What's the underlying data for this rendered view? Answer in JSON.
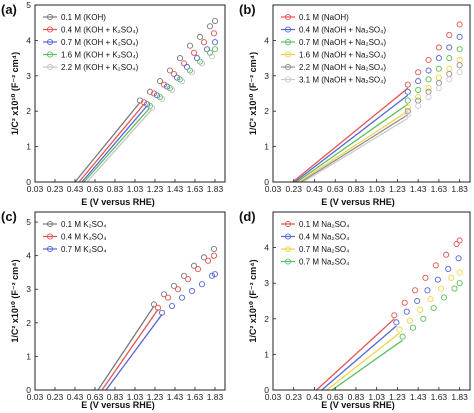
{
  "figure": {
    "x_axis_title": "E (V versus RHE)"
  },
  "chart_data": [
    {
      "panel": "(a)",
      "type": "scatter",
      "xlabel": "E (V versus RHE)",
      "ylabel": "1/C² x10¹⁰ (F⁻² cm⁴)",
      "xlim": [
        0.03,
        1.93
      ],
      "ylim": [
        0,
        5
      ],
      "xticks": [
        "0.03",
        "0.23",
        "0.43",
        "0.63",
        "0.83",
        "1.03",
        "1.23",
        "1.43",
        "1.63",
        "1.83"
      ],
      "yticks": [
        "0",
        "1",
        "2",
        "3",
        "4",
        "5"
      ],
      "legend_position": "top-left",
      "series": [
        {
          "name": "0.1 M (KOH)",
          "color": "#7a7a7a",
          "fit_x": [
            0.43,
            1.08
          ],
          "fit_y": [
            0,
            2.25
          ],
          "x": [
            1.08,
            1.18,
            1.28,
            1.38,
            1.48,
            1.58,
            1.68,
            1.78,
            1.83
          ],
          "y": [
            2.3,
            2.55,
            2.85,
            3.15,
            3.5,
            3.85,
            4.1,
            4.4,
            4.55
          ]
        },
        {
          "name": "0.4 M (KOH + K₂SO₄)",
          "color": "#e8534f",
          "fit_x": [
            0.47,
            1.12
          ],
          "fit_y": [
            0,
            2.2
          ],
          "x": [
            1.12,
            1.22,
            1.32,
            1.42,
            1.52,
            1.62,
            1.72,
            1.82
          ],
          "y": [
            2.25,
            2.5,
            2.75,
            3.05,
            3.35,
            3.65,
            3.95,
            4.2
          ]
        },
        {
          "name": "0.7 M (KOH + K₂SO₄)",
          "color": "#5567d8",
          "fit_x": [
            0.5,
            1.15
          ],
          "fit_y": [
            0,
            2.15
          ],
          "x": [
            1.15,
            1.25,
            1.35,
            1.45,
            1.55,
            1.65,
            1.75,
            1.83
          ],
          "y": [
            2.2,
            2.45,
            2.7,
            2.95,
            3.25,
            3.5,
            3.75,
            3.95
          ]
        },
        {
          "name": "1.6 M (KOH + K₂SO₄)",
          "color": "#5cbf5c",
          "fit_x": [
            0.52,
            1.18
          ],
          "fit_y": [
            0,
            2.1
          ],
          "x": [
            1.18,
            1.28,
            1.38,
            1.48,
            1.58,
            1.68,
            1.78,
            1.83
          ],
          "y": [
            2.15,
            2.4,
            2.65,
            2.9,
            3.15,
            3.4,
            3.65,
            3.75
          ]
        },
        {
          "name": "2.2 M (KOH + K₂SO₄)",
          "color": "#c4c4c4",
          "fit_x": [
            0.55,
            1.2
          ],
          "fit_y": [
            0,
            2.05
          ],
          "x": [
            1.2,
            1.3,
            1.4,
            1.5,
            1.6,
            1.7,
            1.8
          ],
          "y": [
            2.1,
            2.35,
            2.6,
            2.85,
            3.1,
            3.35,
            3.55
          ]
        }
      ]
    },
    {
      "panel": "(b)",
      "type": "scatter",
      "xlabel": "E (V versus RHE)",
      "ylabel": "1/C² x10¹⁰ (F⁻² cm⁴)",
      "xlim": [
        0.03,
        1.93
      ],
      "ylim": [
        0,
        5
      ],
      "xticks": [
        "0.03",
        "0.23",
        "0.43",
        "0.63",
        "0.83",
        "1.03",
        "1.23",
        "1.43",
        "1.63",
        "1.83"
      ],
      "yticks": [
        "0",
        "1",
        "2",
        "3",
        "4"
      ],
      "legend_position": "top-left",
      "series": [
        {
          "name": "0.1 M (NaOH)",
          "color": "#e8534f",
          "fit_x": [
            0.22,
            1.33
          ],
          "fit_y": [
            0,
            2.65
          ],
          "x": [
            1.33,
            1.43,
            1.53,
            1.63,
            1.73,
            1.83
          ],
          "y": [
            2.75,
            3.1,
            3.45,
            3.8,
            4.15,
            4.45
          ]
        },
        {
          "name": "0.4 M (NaOH + Na₂SO₄)",
          "color": "#5567d8",
          "fit_x": [
            0.24,
            1.33
          ],
          "fit_y": [
            0,
            2.45
          ],
          "x": [
            1.33,
            1.43,
            1.53,
            1.63,
            1.73,
            1.83
          ],
          "y": [
            2.55,
            2.85,
            3.15,
            3.5,
            3.8,
            4.1
          ]
        },
        {
          "name": "0.7 M (NaOH + Na₂SO₄)",
          "color": "#5cbf5c",
          "fit_x": [
            0.26,
            1.33
          ],
          "fit_y": [
            0,
            2.2
          ],
          "x": [
            1.33,
            1.43,
            1.53,
            1.63,
            1.73,
            1.83
          ],
          "y": [
            2.3,
            2.6,
            2.9,
            3.2,
            3.5,
            3.75
          ]
        },
        {
          "name": "1.6 M (NaOH + Na₂SO₄)",
          "color": "#f2d24a",
          "fit_x": [
            0.28,
            1.33
          ],
          "fit_y": [
            0,
            2.0
          ],
          "x": [
            1.33,
            1.43,
            1.53,
            1.63,
            1.73,
            1.83
          ],
          "y": [
            2.1,
            2.4,
            2.65,
            2.95,
            3.2,
            3.45
          ]
        },
        {
          "name": "2.2 M (NaOH + Na₂SO₄)",
          "color": "#8e8e8e",
          "fit_x": [
            0.3,
            1.33
          ],
          "fit_y": [
            0,
            1.9
          ],
          "x": [
            1.33,
            1.43,
            1.53,
            1.63,
            1.73,
            1.83
          ],
          "y": [
            2.0,
            2.3,
            2.55,
            2.8,
            3.05,
            3.3
          ]
        },
        {
          "name": "3.1 M (NaOH + Na₂SO₄)",
          "color": "#cccccc",
          "fit_x": [
            0.32,
            1.33
          ],
          "fit_y": [
            0,
            1.8
          ],
          "x": [
            1.33,
            1.43,
            1.53,
            1.63,
            1.73,
            1.83
          ],
          "y": [
            1.9,
            2.15,
            2.4,
            2.65,
            2.9,
            3.1
          ]
        }
      ]
    },
    {
      "panel": "(c)",
      "type": "scatter",
      "xlabel": "E (V versus RHE)",
      "ylabel": "1/C² x10¹⁰ (F⁻² cm⁴)",
      "xlim": [
        0.03,
        1.93
      ],
      "ylim": [
        0,
        5.3
      ],
      "xticks": [
        "0.03",
        "0.23",
        "0.43",
        "0.63",
        "0.83",
        "1.03",
        "1.23",
        "1.43",
        "1.63",
        "1.83"
      ],
      "yticks": [
        "0",
        "1",
        "2",
        "3",
        "4",
        "5"
      ],
      "legend_position": "top-left",
      "series": [
        {
          "name": "0.1 M K₂SO₄",
          "color": "#7a7a7a",
          "fit_x": [
            0.66,
            1.22
          ],
          "fit_y": [
            0,
            2.5
          ],
          "x": [
            1.22,
            1.32,
            1.42,
            1.52,
            1.62,
            1.72,
            1.82
          ],
          "y": [
            2.55,
            2.85,
            3.1,
            3.4,
            3.7,
            3.95,
            4.2
          ]
        },
        {
          "name": "0.4 M K₂SO₄",
          "color": "#e8534f",
          "fit_x": [
            0.7,
            1.26
          ],
          "fit_y": [
            0,
            2.4
          ],
          "x": [
            1.26,
            1.36,
            1.46,
            1.56,
            1.66,
            1.76,
            1.82
          ],
          "y": [
            2.45,
            2.75,
            3.0,
            3.3,
            3.6,
            3.85,
            4.0
          ]
        },
        {
          "name": "0.7 M K₂SO₄",
          "color": "#5567d8",
          "fit_x": [
            0.74,
            1.3
          ],
          "fit_y": [
            0,
            2.25
          ],
          "x": [
            1.3,
            1.4,
            1.5,
            1.6,
            1.7,
            1.8,
            1.83
          ],
          "y": [
            2.3,
            2.5,
            2.75,
            2.95,
            3.15,
            3.4,
            3.45
          ]
        }
      ]
    },
    {
      "panel": "(d)",
      "type": "scatter",
      "xlabel": "E (V versus RHE)",
      "ylabel": "1/C² x10¹⁰ (F⁻² cm⁴)",
      "xlim": [
        0.03,
        1.93
      ],
      "ylim": [
        0,
        5
      ],
      "xticks": [
        "0.03",
        "0.23",
        "0.43",
        "0.63",
        "0.83",
        "1.03",
        "1.23",
        "1.43",
        "1.63",
        "1.83"
      ],
      "yticks": [
        "0",
        "1",
        "2",
        "3",
        "4"
      ],
      "legend_position": "top-left",
      "series": [
        {
          "name": "0.1 M Na₂SO₄",
          "color": "#e8534f",
          "fit_x": [
            0.45,
            1.2
          ],
          "fit_y": [
            0,
            2.0
          ],
          "x": [
            1.2,
            1.3,
            1.4,
            1.5,
            1.6,
            1.7,
            1.8,
            1.83
          ],
          "y": [
            2.1,
            2.45,
            2.8,
            3.15,
            3.5,
            3.8,
            4.1,
            4.2
          ]
        },
        {
          "name": "0.4 M Na₂SO₄",
          "color": "#5567d8",
          "fit_x": [
            0.5,
            1.22
          ],
          "fit_y": [
            0,
            1.8
          ],
          "x": [
            1.22,
            1.32,
            1.42,
            1.52,
            1.62,
            1.72,
            1.82
          ],
          "y": [
            1.9,
            2.2,
            2.5,
            2.8,
            3.1,
            3.4,
            3.7
          ]
        },
        {
          "name": "0.7 M Na₂SO₄",
          "color": "#f2d24a",
          "fit_x": [
            0.55,
            1.25
          ],
          "fit_y": [
            0,
            1.6
          ],
          "x": [
            1.25,
            1.35,
            1.45,
            1.55,
            1.65,
            1.75,
            1.83
          ],
          "y": [
            1.7,
            1.95,
            2.25,
            2.55,
            2.85,
            3.15,
            3.3
          ]
        },
        {
          "name": "0.7 M Na₂SO₄",
          "color": "#5cbf5c",
          "fit_x": [
            0.6,
            1.28
          ],
          "fit_y": [
            0,
            1.4
          ],
          "x": [
            1.28,
            1.38,
            1.48,
            1.58,
            1.68,
            1.78,
            1.83
          ],
          "y": [
            1.5,
            1.75,
            2.0,
            2.3,
            2.6,
            2.85,
            3.0
          ]
        }
      ]
    }
  ]
}
